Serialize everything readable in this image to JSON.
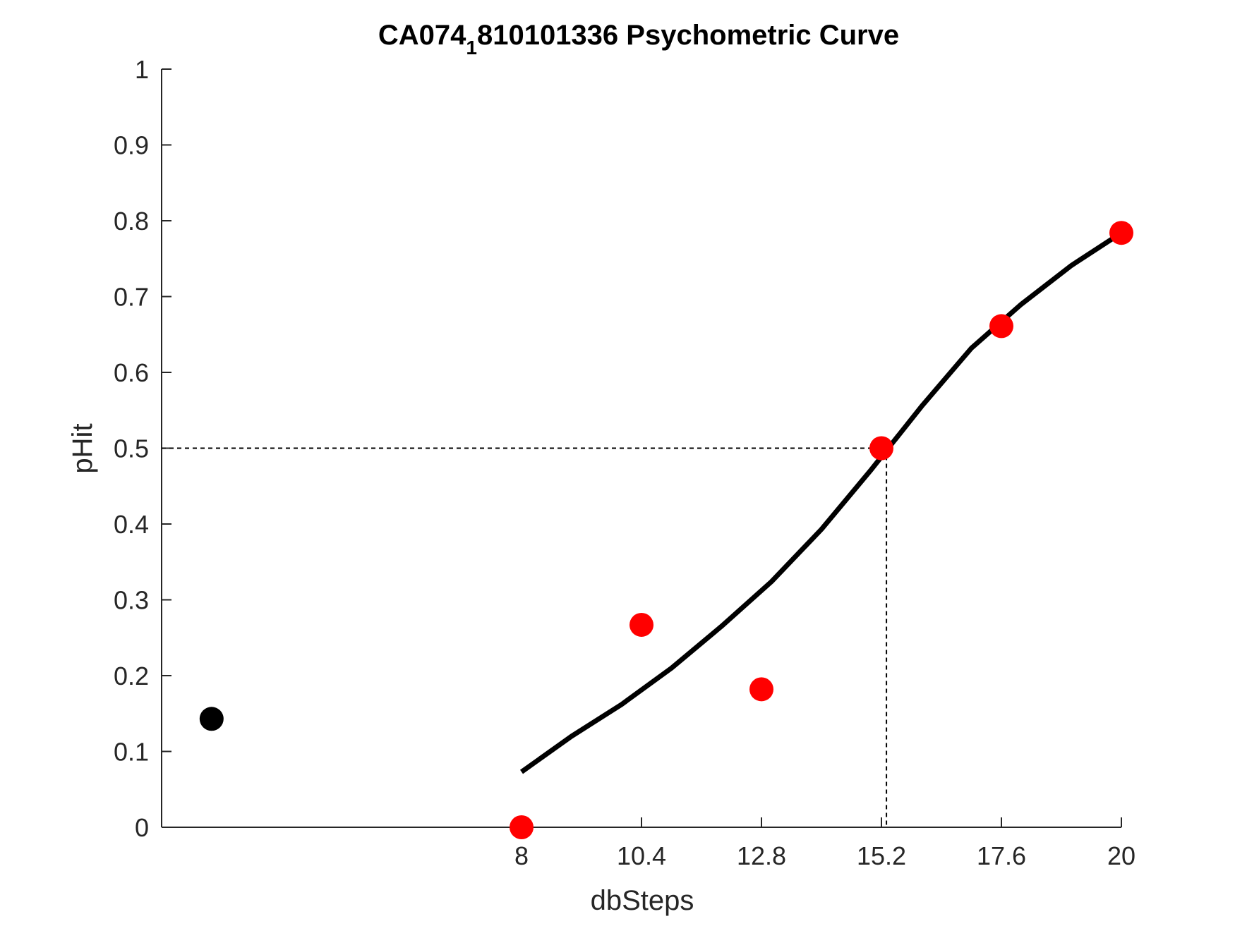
{
  "chart_data": {
    "type": "scatter",
    "title": {
      "prefix": "CA074",
      "subscript": "1",
      "suffix": "810101336 Psychometric Curve"
    },
    "xlabel": "dbSteps",
    "ylabel": "pHit",
    "xlim": [
      0.8,
      20
    ],
    "ylim": [
      0,
      1
    ],
    "x_ticks": [
      8,
      10.4,
      12.8,
      15.2,
      17.6,
      20
    ],
    "x_tick_labels": [
      "8",
      "10.4",
      "12.8",
      "15.2",
      "17.6",
      "20"
    ],
    "y_ticks": [
      0,
      0.1,
      0.2,
      0.3,
      0.4,
      0.5,
      0.6,
      0.7,
      0.8,
      0.9,
      1
    ],
    "y_tick_labels": [
      "0",
      "0.1",
      "0.2",
      "0.3",
      "0.4",
      "0.5",
      "0.6",
      "0.7",
      "0.8",
      "0.9",
      "1"
    ],
    "series": [
      {
        "type": "scatter",
        "color": "#ff0000",
        "points": [
          {
            "x": 8,
            "y": 0
          },
          {
            "x": 10.4,
            "y": 0.267
          },
          {
            "x": 12.8,
            "y": 0.182
          },
          {
            "x": 15.2,
            "y": 0.5
          },
          {
            "x": 17.6,
            "y": 0.661
          },
          {
            "x": 20,
            "y": 0.784
          }
        ]
      },
      {
        "type": "scatter",
        "color": "#000000",
        "points": [
          {
            "x": 1.8,
            "y": 0.143
          }
        ]
      },
      {
        "type": "line",
        "color": "#000000",
        "points": [
          {
            "x": 8,
            "y": 0.073
          },
          {
            "x": 9,
            "y": 0.12
          },
          {
            "x": 10,
            "y": 0.162
          },
          {
            "x": 11,
            "y": 0.21
          },
          {
            "x": 12,
            "y": 0.265
          },
          {
            "x": 13,
            "y": 0.324
          },
          {
            "x": 14,
            "y": 0.393
          },
          {
            "x": 15,
            "y": 0.472
          },
          {
            "x": 16,
            "y": 0.555
          },
          {
            "x": 17,
            "y": 0.632
          },
          {
            "x": 18,
            "y": 0.69
          },
          {
            "x": 19,
            "y": 0.741
          },
          {
            "x": 20,
            "y": 0.784
          }
        ]
      }
    ],
    "threshold": {
      "x": 15.3,
      "y": 0.5
    },
    "grid": false,
    "legend": "none"
  }
}
